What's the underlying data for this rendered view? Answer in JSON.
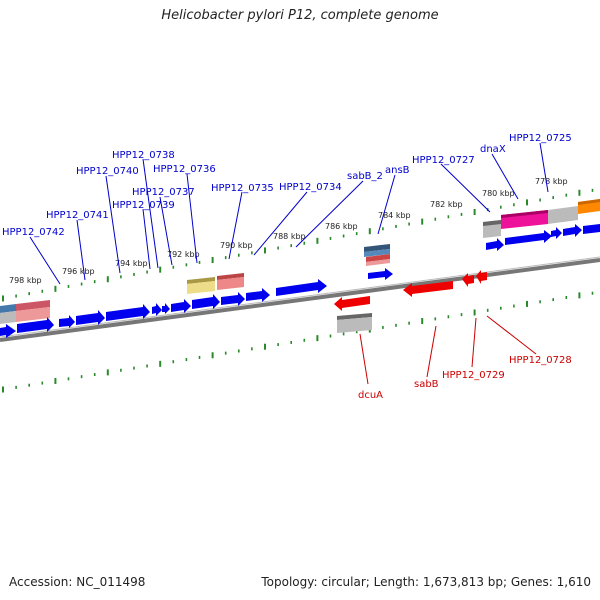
{
  "title": "Helicobacter pylori P12, complete genome",
  "footer": {
    "accession": "Accession: NC_011498",
    "summary": "Topology: circular; Length: 1,673,813 bp; Genes: 1,610"
  },
  "colors": {
    "forward_gene": "#0000ee",
    "reverse_gene": "#ee0000",
    "forward_label": "#0000cc",
    "reverse_label": "#cc0000",
    "backbone": "#777777",
    "tick": "#2a8a2a",
    "gc_skew": "#ee1199",
    "orange": "#ff8800",
    "salmon": "#ee7777",
    "yellow": "#eedd88",
    "grey": "#aaaaaa",
    "steel": "#4477aa"
  },
  "scale": {
    "labels": [
      "798 kbp",
      "796 kbp",
      "794 kbp",
      "792 kbp",
      "790 kbp",
      "788 kbp",
      "786 kbp",
      "784 kbp",
      "782 kbp",
      "780 kbp",
      "778 kbp"
    ]
  },
  "genes_forward": [
    "HPP12_0742",
    "HPP12_0741",
    "HPP12_0740",
    "HPP12_0739",
    "HPP12_0738",
    "HPP12_0737",
    "HPP12_0736",
    "HPP12_0735",
    "HPP12_0734",
    "sabB_2",
    "ansB",
    "HPP12_0727",
    "dnaX",
    "HPP12_0725"
  ],
  "genes_reverse": [
    "dcuA",
    "sabB",
    "HPP12_0729",
    "HPP12_0728"
  ]
}
